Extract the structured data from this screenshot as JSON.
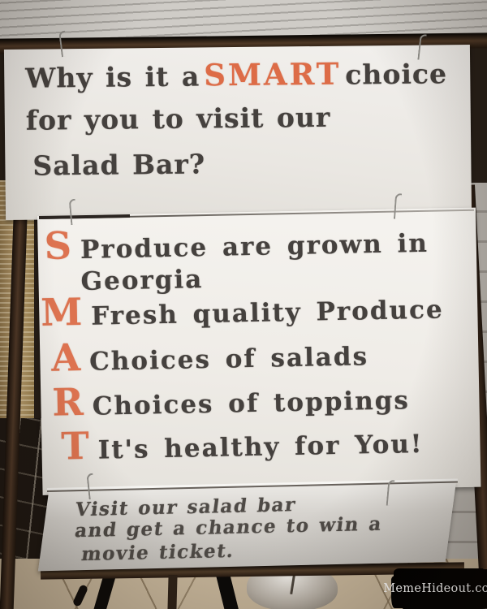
{
  "colors": {
    "accent_orange": "#dd6c47",
    "text_dark": "#45413e",
    "board_white": "#efede9",
    "frame_brown": "#4f3827"
  },
  "sign": {
    "headline": {
      "pre": "Why is it a",
      "highlight": "SMART",
      "post": "choice",
      "line2": "for you to visit our",
      "line3": "Salad Bar?"
    },
    "acrostic": [
      {
        "letter": "S",
        "text": "Produce are grown in",
        "wrap": "Georgia"
      },
      {
        "letter": "M",
        "text": "Fresh quality Produce"
      },
      {
        "letter": "A",
        "text": "Choices of salads"
      },
      {
        "letter": "R",
        "text": "Choices of toppings"
      },
      {
        "letter": "T",
        "text": "It's healthy for You!"
      }
    ],
    "footer_lines": [
      "Visit our salad bar",
      "and get a chance to win a",
      "movie ticket."
    ]
  },
  "watermark": "MemeHideout.com"
}
